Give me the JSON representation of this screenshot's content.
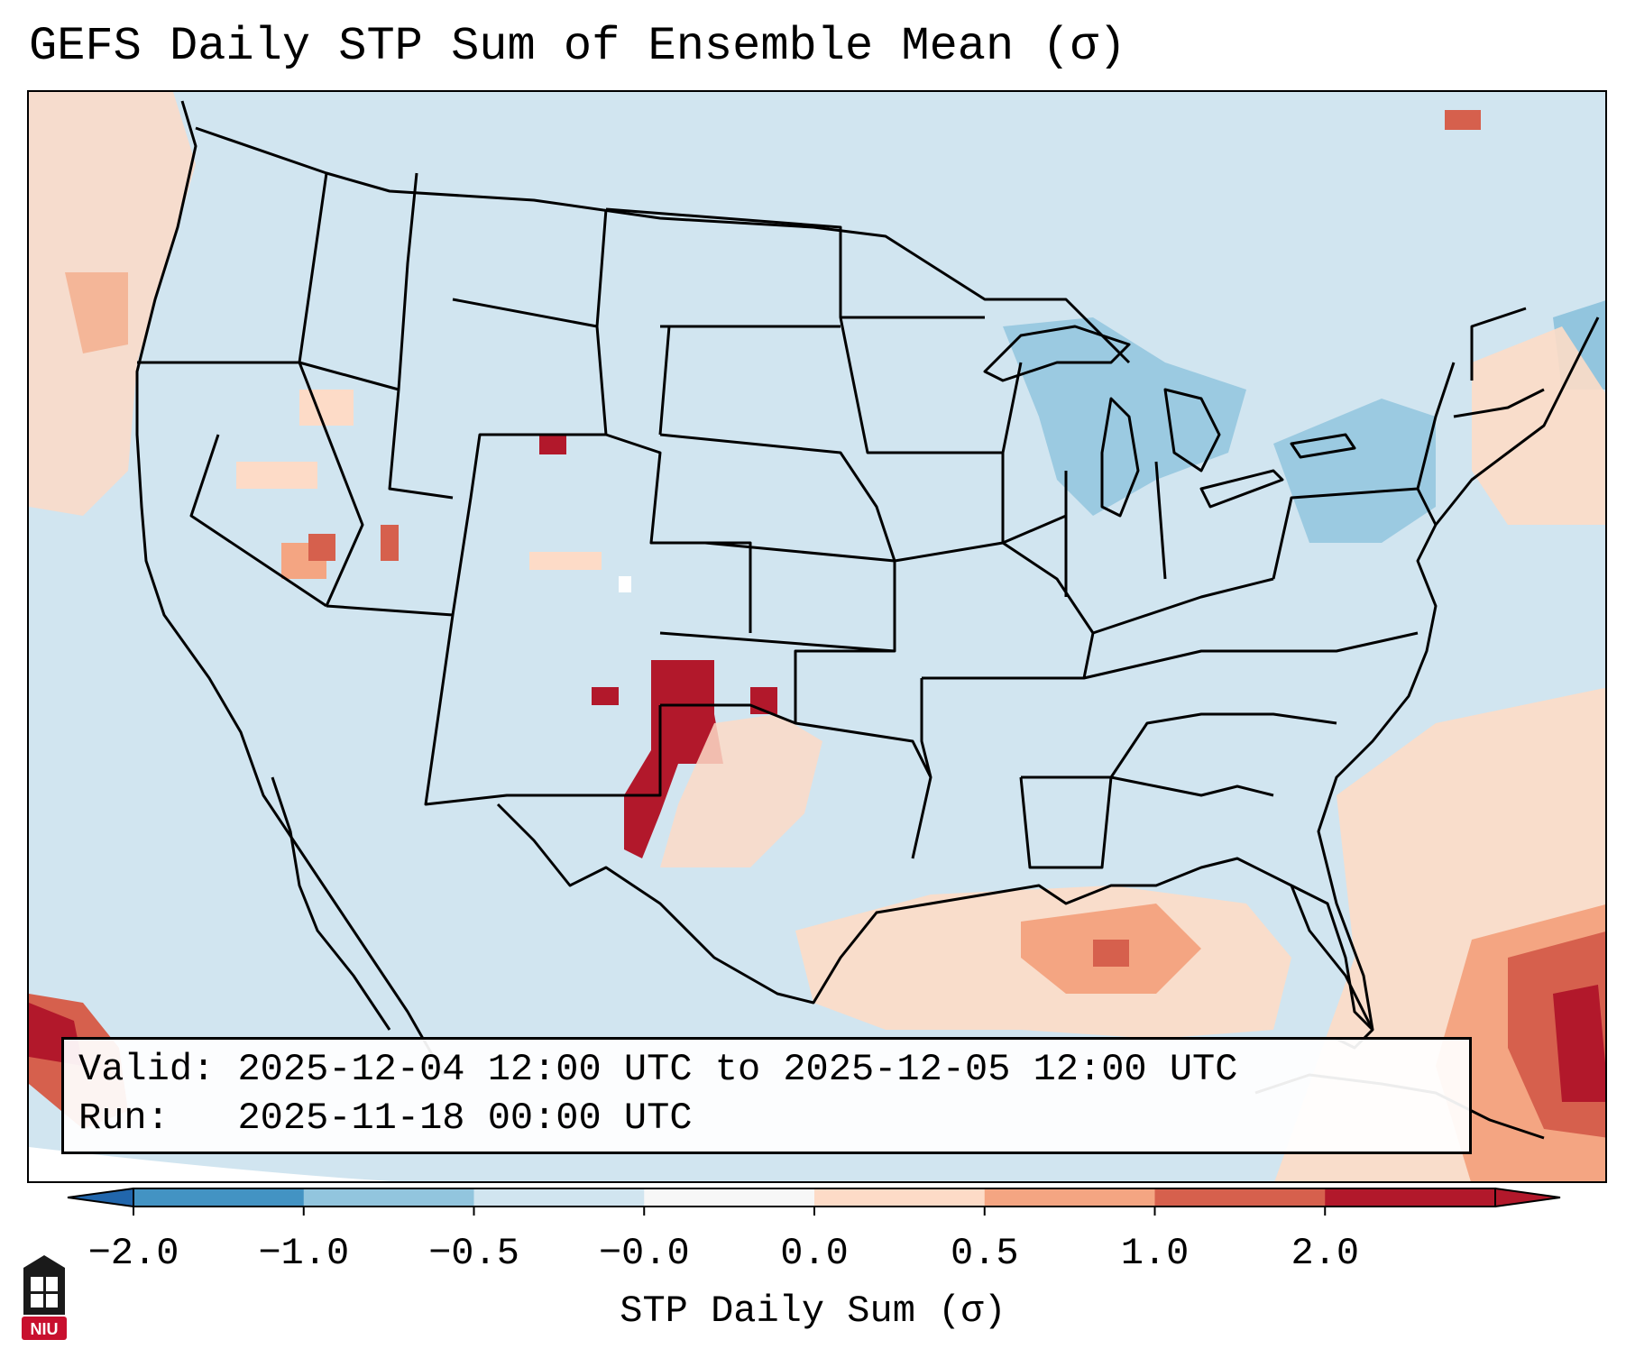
{
  "title": "GEFS Daily STP Sum of Ensemble Mean (σ)",
  "info": {
    "valid_label": "Valid:",
    "valid_value": "2025-12-04 12:00 UTC to 2025-12-05 12:00 UTC",
    "run_label": "Run:",
    "run_value": "2025-11-18 00:00 UTC"
  },
  "colorbar": {
    "label": "STP Daily Sum (σ)",
    "ticks": [
      "−2.0",
      "−1.0",
      "−0.5",
      "−0.0",
      "0.0",
      "0.5",
      "1.0",
      "2.0"
    ],
    "colors": [
      "#4393c3",
      "#92c5de",
      "#d1e5f0",
      "#f7f7f7",
      "#fddbc7",
      "#f4a582",
      "#d6604d",
      "#b2182b"
    ],
    "under_color": "#2166ac",
    "over_color": "#b2182b"
  },
  "map": {
    "background_color": "#d1e5f0",
    "region": "Contiguous United States",
    "features": [
      "state-borders",
      "coastlines",
      "great-lakes",
      "mexico",
      "cuba",
      "bahamas"
    ]
  },
  "logo": {
    "text": "NIU",
    "color": "#c8102e"
  }
}
